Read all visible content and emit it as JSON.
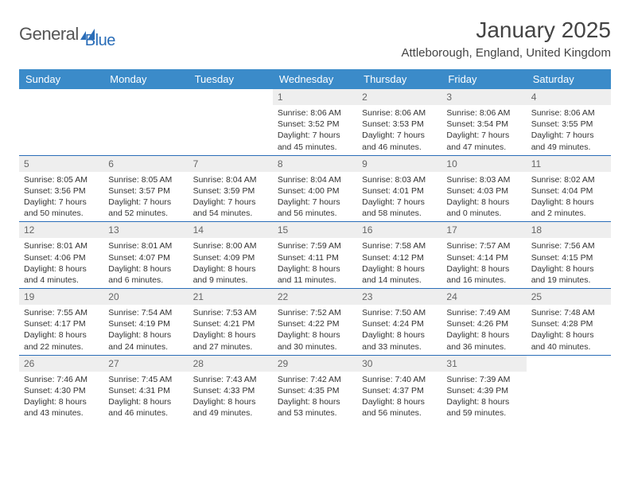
{
  "logo": {
    "word1": "General",
    "word2": "Blue"
  },
  "title": "January 2025",
  "location": "Attleborough, England, United Kingdom",
  "colors": {
    "header_bg": "#3b8bc9",
    "header_text": "#ffffff",
    "row_border": "#2a6db8",
    "daynum_bg": "#eeeeee",
    "daynum_text": "#666666",
    "body_text": "#333333",
    "logo_gray": "#555555",
    "logo_blue": "#2a6db8"
  },
  "typography": {
    "month_fontsize": 28,
    "location_fontsize": 15,
    "header_fontsize": 13,
    "daynum_fontsize": 12,
    "info_fontsize": 10.5
  },
  "dow": [
    "Sunday",
    "Monday",
    "Tuesday",
    "Wednesday",
    "Thursday",
    "Friday",
    "Saturday"
  ],
  "weeks": [
    [
      null,
      null,
      null,
      {
        "d": "1",
        "sr": "8:06 AM",
        "ss": "3:52 PM",
        "dl": "7 hours and 45 minutes."
      },
      {
        "d": "2",
        "sr": "8:06 AM",
        "ss": "3:53 PM",
        "dl": "7 hours and 46 minutes."
      },
      {
        "d": "3",
        "sr": "8:06 AM",
        "ss": "3:54 PM",
        "dl": "7 hours and 47 minutes."
      },
      {
        "d": "4",
        "sr": "8:06 AM",
        "ss": "3:55 PM",
        "dl": "7 hours and 49 minutes."
      }
    ],
    [
      {
        "d": "5",
        "sr": "8:05 AM",
        "ss": "3:56 PM",
        "dl": "7 hours and 50 minutes."
      },
      {
        "d": "6",
        "sr": "8:05 AM",
        "ss": "3:57 PM",
        "dl": "7 hours and 52 minutes."
      },
      {
        "d": "7",
        "sr": "8:04 AM",
        "ss": "3:59 PM",
        "dl": "7 hours and 54 minutes."
      },
      {
        "d": "8",
        "sr": "8:04 AM",
        "ss": "4:00 PM",
        "dl": "7 hours and 56 minutes."
      },
      {
        "d": "9",
        "sr": "8:03 AM",
        "ss": "4:01 PM",
        "dl": "7 hours and 58 minutes."
      },
      {
        "d": "10",
        "sr": "8:03 AM",
        "ss": "4:03 PM",
        "dl": "8 hours and 0 minutes."
      },
      {
        "d": "11",
        "sr": "8:02 AM",
        "ss": "4:04 PM",
        "dl": "8 hours and 2 minutes."
      }
    ],
    [
      {
        "d": "12",
        "sr": "8:01 AM",
        "ss": "4:06 PM",
        "dl": "8 hours and 4 minutes."
      },
      {
        "d": "13",
        "sr": "8:01 AM",
        "ss": "4:07 PM",
        "dl": "8 hours and 6 minutes."
      },
      {
        "d": "14",
        "sr": "8:00 AM",
        "ss": "4:09 PM",
        "dl": "8 hours and 9 minutes."
      },
      {
        "d": "15",
        "sr": "7:59 AM",
        "ss": "4:11 PM",
        "dl": "8 hours and 11 minutes."
      },
      {
        "d": "16",
        "sr": "7:58 AM",
        "ss": "4:12 PM",
        "dl": "8 hours and 14 minutes."
      },
      {
        "d": "17",
        "sr": "7:57 AM",
        "ss": "4:14 PM",
        "dl": "8 hours and 16 minutes."
      },
      {
        "d": "18",
        "sr": "7:56 AM",
        "ss": "4:15 PM",
        "dl": "8 hours and 19 minutes."
      }
    ],
    [
      {
        "d": "19",
        "sr": "7:55 AM",
        "ss": "4:17 PM",
        "dl": "8 hours and 22 minutes."
      },
      {
        "d": "20",
        "sr": "7:54 AM",
        "ss": "4:19 PM",
        "dl": "8 hours and 24 minutes."
      },
      {
        "d": "21",
        "sr": "7:53 AM",
        "ss": "4:21 PM",
        "dl": "8 hours and 27 minutes."
      },
      {
        "d": "22",
        "sr": "7:52 AM",
        "ss": "4:22 PM",
        "dl": "8 hours and 30 minutes."
      },
      {
        "d": "23",
        "sr": "7:50 AM",
        "ss": "4:24 PM",
        "dl": "8 hours and 33 minutes."
      },
      {
        "d": "24",
        "sr": "7:49 AM",
        "ss": "4:26 PM",
        "dl": "8 hours and 36 minutes."
      },
      {
        "d": "25",
        "sr": "7:48 AM",
        "ss": "4:28 PM",
        "dl": "8 hours and 40 minutes."
      }
    ],
    [
      {
        "d": "26",
        "sr": "7:46 AM",
        "ss": "4:30 PM",
        "dl": "8 hours and 43 minutes."
      },
      {
        "d": "27",
        "sr": "7:45 AM",
        "ss": "4:31 PM",
        "dl": "8 hours and 46 minutes."
      },
      {
        "d": "28",
        "sr": "7:43 AM",
        "ss": "4:33 PM",
        "dl": "8 hours and 49 minutes."
      },
      {
        "d": "29",
        "sr": "7:42 AM",
        "ss": "4:35 PM",
        "dl": "8 hours and 53 minutes."
      },
      {
        "d": "30",
        "sr": "7:40 AM",
        "ss": "4:37 PM",
        "dl": "8 hours and 56 minutes."
      },
      {
        "d": "31",
        "sr": "7:39 AM",
        "ss": "4:39 PM",
        "dl": "8 hours and 59 minutes."
      },
      null
    ]
  ],
  "labels": {
    "sunrise": "Sunrise:",
    "sunset": "Sunset:",
    "daylight": "Daylight:"
  }
}
